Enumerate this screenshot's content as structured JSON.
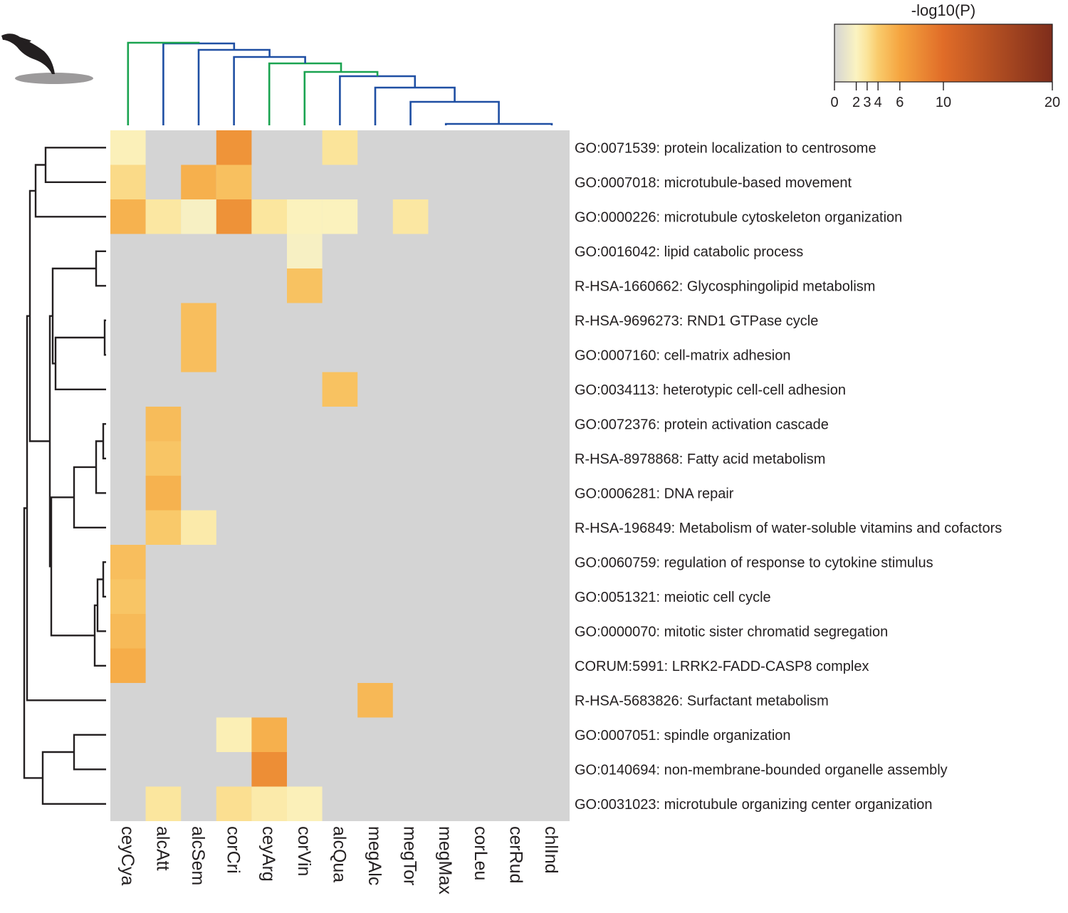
{
  "chart_data": {
    "type": "heatmap",
    "value_label": "-log10(P)",
    "colorbar": {
      "title": "-log10(P)",
      "ticks": [
        "0",
        "2",
        "3",
        "4",
        "6",
        "10",
        "20"
      ],
      "tick_values": [
        0,
        2,
        3,
        4,
        6,
        10,
        20
      ],
      "stops": [
        {
          "v": 0,
          "color": "#d4d4d4"
        },
        {
          "v": 2,
          "color": "#fbf3c1"
        },
        {
          "v": 3,
          "color": "#fbe49a"
        },
        {
          "v": 4,
          "color": "#f9cb6c"
        },
        {
          "v": 6,
          "color": "#f5a540"
        },
        {
          "v": 10,
          "color": "#e06c28"
        },
        {
          "v": 20,
          "color": "#7e2d1b"
        }
      ]
    },
    "columns": [
      "ceyCya",
      "alcAtt",
      "alcSem",
      "corCri",
      "ceyArg",
      "corVin",
      "alcQua",
      "megAlc",
      "megTor",
      "megMax",
      "corLeu",
      "cerRud",
      "chlInd"
    ],
    "rows": [
      "GO:0071539: protein localization to centrosome",
      "GO:0007018: microtubule-based movement",
      "GO:0000226: microtubule cytoskeleton organization",
      "GO:0016042: lipid catabolic process",
      "R-HSA-1660662: Glycosphingolipid metabolism",
      "R-HSA-9696273: RND1 GTPase cycle",
      "GO:0007160: cell-matrix adhesion",
      "GO:0034113: heterotypic cell-cell adhesion",
      "GO:0072376: protein activation cascade",
      "R-HSA-8978868: Fatty acid metabolism",
      "GO:0006281: DNA repair",
      "R-HSA-196849: Metabolism of water-soluble vitamins and cofactors",
      "GO:0060759: regulation of response to cytokine stimulus",
      "GO:0051321: meiotic cell cycle",
      "GO:0000070: mitotic sister chromatid segregation",
      "CORUM:5991: LRRK2-FADD-CASP8 complex",
      "R-HSA-5683826: Surfactant metabolism",
      "GO:0007051: spindle organization",
      "GO:0140694: non-membrane-bounded organelle assembly",
      "GO:0031023: microtubule organizing center organization"
    ],
    "values": [
      [
        2.2,
        0,
        0,
        7.2,
        0,
        0,
        3.0,
        0,
        0,
        0,
        0,
        0,
        0
      ],
      [
        3.4,
        0,
        5.4,
        4.6,
        0,
        0,
        0,
        0,
        0,
        0,
        0,
        0,
        0
      ],
      [
        5.3,
        2.8,
        1.8,
        7.3,
        2.9,
        2.1,
        2.1,
        0,
        2.8,
        0,
        0,
        0,
        0
      ],
      [
        0,
        0,
        0,
        0,
        0,
        1.8,
        0,
        0,
        0,
        0,
        0,
        0,
        0
      ],
      [
        0,
        0,
        0,
        0,
        0,
        4.5,
        0,
        0,
        0,
        0,
        0,
        0,
        0
      ],
      [
        0,
        0,
        4.7,
        0,
        0,
        0,
        0,
        0,
        0,
        0,
        0,
        0,
        0
      ],
      [
        0,
        0,
        4.7,
        0,
        0,
        0,
        0,
        0,
        0,
        0,
        0,
        0,
        0
      ],
      [
        0,
        0,
        0,
        0,
        0,
        0,
        4.5,
        0,
        0,
        0,
        0,
        0,
        0
      ],
      [
        0,
        4.8,
        0,
        0,
        0,
        0,
        0,
        0,
        0,
        0,
        0,
        0,
        0
      ],
      [
        0,
        4.3,
        0,
        0,
        0,
        0,
        0,
        0,
        0,
        0,
        0,
        0,
        0
      ],
      [
        0,
        5.3,
        0,
        0,
        0,
        0,
        0,
        0,
        0,
        0,
        0,
        0,
        0
      ],
      [
        0,
        4.1,
        2.6,
        0,
        0,
        0,
        0,
        0,
        0,
        0,
        0,
        0,
        0
      ],
      [
        4.7,
        0,
        0,
        0,
        0,
        0,
        0,
        0,
        0,
        0,
        0,
        0,
        0
      ],
      [
        4.3,
        0,
        0,
        0,
        0,
        0,
        0,
        0,
        0,
        0,
        0,
        0,
        0
      ],
      [
        4.9,
        0,
        0,
        0,
        0,
        0,
        0,
        0,
        0,
        0,
        0,
        0,
        0
      ],
      [
        5.6,
        0,
        0,
        0,
        0,
        0,
        0,
        0,
        0,
        0,
        0,
        0,
        0
      ],
      [
        0,
        0,
        0,
        0,
        0,
        0,
        0,
        5.0,
        0,
        0,
        0,
        0,
        0
      ],
      [
        0,
        0,
        0,
        2.3,
        5.4,
        0,
        0,
        0,
        0,
        0,
        0,
        0,
        0
      ],
      [
        0,
        0,
        0,
        0,
        7.6,
        0,
        0,
        0,
        0,
        0,
        0,
        0,
        0
      ],
      [
        0,
        2.9,
        0,
        3.2,
        2.6,
        2.2,
        0,
        0,
        0,
        0,
        0,
        0,
        0
      ]
    ],
    "column_dendrogram_colors": {
      "green": "#1aa350",
      "blue": "#1f4fa3"
    },
    "row_dendrogram_color": "#231f20",
    "icon": "diving-bird-icon"
  }
}
